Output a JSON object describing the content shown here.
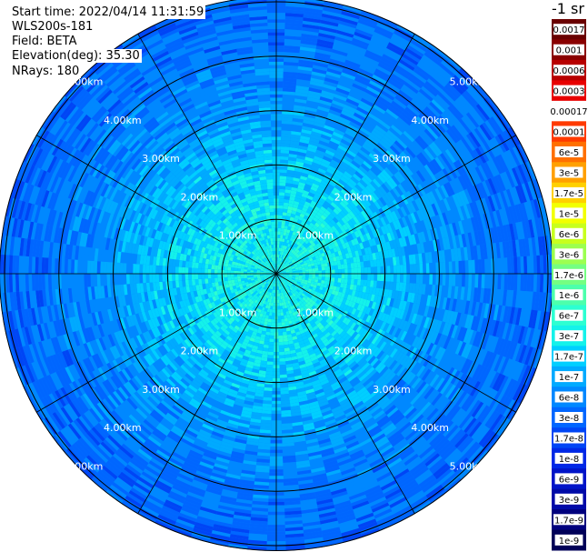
{
  "info": {
    "start_time": "Start time: 2022/04/14 11:31:59",
    "instrument": "WLS200s-181",
    "field": "Field: BETA",
    "elevation": "Elevation(deg): 35.30",
    "nrays": "NRays: 180"
  },
  "chart_data": {
    "type": "heatmap",
    "projection": "polar",
    "title": "",
    "range_rings_km": [
      1,
      2,
      3,
      4,
      5
    ],
    "ring_labels": [
      "1.00km",
      "2.00km",
      "3.00km",
      "4.00km",
      "5.00km"
    ],
    "max_range_km": 5.1,
    "radial_spokes_deg": [
      0,
      30,
      60,
      90,
      120,
      150,
      180,
      210,
      240,
      270,
      300,
      330
    ],
    "n_rays": 180,
    "field": "BETA",
    "colorbar": {
      "unit": "-1 sr",
      "labels": [
        "0.0017",
        "0.001",
        "0.0006",
        "0.0003",
        "0.00017",
        "0.0001",
        "6e-5",
        "3e-5",
        "1.7e-5",
        "1e-5",
        "6e-6",
        "3e-6",
        "1.7e-6",
        "1e-6",
        "6e-7",
        "3e-7",
        "1.7e-7",
        "1e-7",
        "6e-8",
        "3e-8",
        "1.7e-8",
        "1e-8",
        "6e-9",
        "3e-9",
        "1.7e-9",
        "1e-9"
      ],
      "colors": [
        "#6a0000",
        "#8a0000",
        "#b80000",
        "#e80000",
        "#ffffff",
        "#ff3a00",
        "#ff7000",
        "#ffa000",
        "#ffd000",
        "#f2ff00",
        "#c8ff1e",
        "#9cff50",
        "#74ff82",
        "#4cffac",
        "#2cffd2",
        "#14f2ea",
        "#00cfff",
        "#00aaff",
        "#0088ff",
        "#0066ff",
        "#0045f5",
        "#0028e6",
        "#0014c8",
        "#000aa8",
        "#00007e",
        "#000058"
      ]
    },
    "profile": {
      "description_values": "approximate dominant color index by range (km)",
      "range_km": [
        0,
        1,
        2,
        3,
        4,
        5
      ],
      "color_index": [
        14.5,
        15,
        16.2,
        17.5,
        18.4,
        19
      ]
    }
  }
}
